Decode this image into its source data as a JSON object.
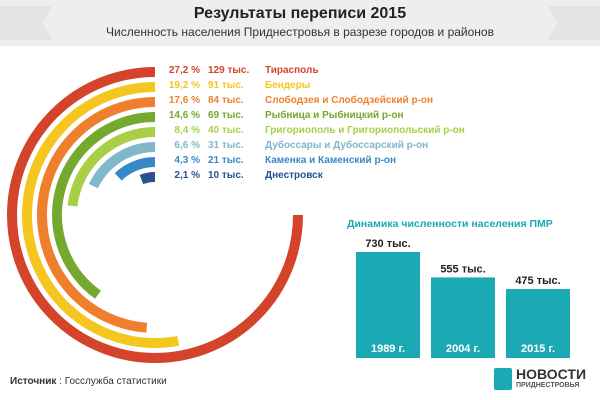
{
  "title": "Результаты переписи 2015",
  "subtitle": "Численность населения Приднестровья в разрезе городов и районов",
  "chart_data": [
    {
      "type": "bar",
      "layout": "radial",
      "series": [
        {
          "percent_label": "27,2 %",
          "value_label": "129 тыс.",
          "name": "Тирасполь",
          "value": 129,
          "percent": 27.2,
          "color": "#d3442a"
        },
        {
          "percent_label": "19,2 %",
          "value_label": "91 тыс.",
          "name": "Бендеры",
          "value": 91,
          "percent": 19.2,
          "color": "#f5c520"
        },
        {
          "percent_label": "17,6 %",
          "value_label": "84 тыс.",
          "name": "Слободзея и Слободзейский р-он",
          "value": 84,
          "percent": 17.6,
          "color": "#ee7f2d"
        },
        {
          "percent_label": "14,6 %",
          "value_label": "69 тыс.",
          "name": "Рыбница и Рыбницкий р-он",
          "value": 69,
          "percent": 14.6,
          "color": "#74a82e"
        },
        {
          "percent_label": "8,4 %",
          "value_label": "40 тыс.",
          "name": "Григориополь и Григориопольский р-он",
          "value": 40,
          "percent": 8.4,
          "color": "#a9cf47"
        },
        {
          "percent_label": "6,6 %",
          "value_label": "31 тыс.",
          "name": "Дубоссары и Дубоссарский р-он",
          "value": 31,
          "percent": 6.6,
          "color": "#7fb8c9"
        },
        {
          "percent_label": "4,3 %",
          "value_label": "21 тыс.",
          "name": "Каменка и Каменский р-он",
          "value": 21,
          "percent": 4.3,
          "color": "#3689c9"
        },
        {
          "percent_label": "2,1 %",
          "value_label": "10 тыс.",
          "name": "Днестровск",
          "value": 10,
          "percent": 2.1,
          "color": "#2a4f91"
        }
      ]
    },
    {
      "type": "bar",
      "title": "Динамика численности населения ПМР",
      "categories": [
        "1989 г.",
        "2004 г.",
        "2015 г."
      ],
      "values": [
        730,
        555,
        475
      ],
      "value_labels": [
        "730 тыс.",
        "555 тыс.",
        "475 тыс."
      ],
      "color": "#1ba9b4"
    }
  ],
  "source": {
    "label": "Источник",
    "separator": " : ",
    "text": "Госслужба статистики"
  },
  "logo": {
    "word1": "НОВОСТИ",
    "word2": "ПРИДНЕСТРОВЬЯ"
  }
}
